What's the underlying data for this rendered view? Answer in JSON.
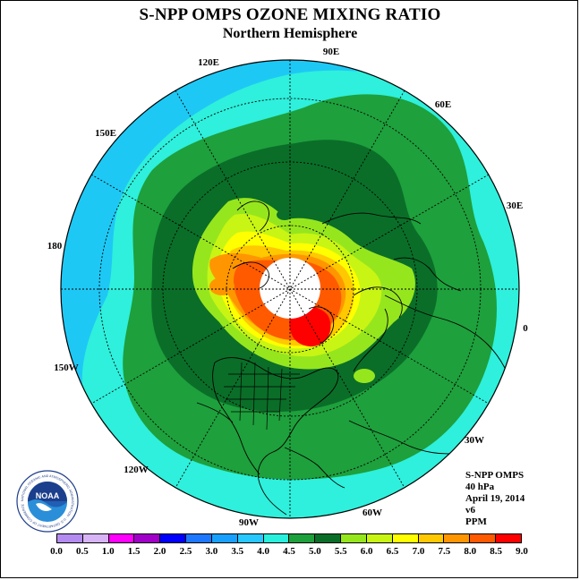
{
  "title": "S-NPP OMPS OZONE MIXING RATIO",
  "subtitle": "Northern Hemisphere",
  "longitude_labels": [
    "90E",
    "60E",
    "30E",
    "0",
    "30W",
    "60W",
    "90W",
    "120W",
    "150W",
    "180",
    "150E",
    "120E"
  ],
  "info": {
    "instrument": "S-NPP OMPS",
    "pressure": "40 hPa",
    "date": "April 19, 2014",
    "version": "v6",
    "unit": "PPM"
  },
  "logo": {
    "name": "noaa-logo",
    "text": "NOAA",
    "ring_text": "NATIONAL OCEANIC AND ATMOSPHERIC ADMINISTRATION · U.S. DEPARTMENT OF COMMERCE"
  },
  "colorbar": {
    "ticks": [
      "0.0",
      "0.5",
      "1.0",
      "1.5",
      "2.0",
      "2.5",
      "3.0",
      "3.5",
      "4.0",
      "4.5",
      "5.0",
      "5.5",
      "6.0",
      "6.5",
      "7.0",
      "7.5",
      "8.0",
      "8.5",
      "9.0"
    ],
    "colors": [
      "#b48cf0",
      "#d7b4f5",
      "#ff00ff",
      "#a000c8",
      "#0000ff",
      "#1e78ff",
      "#19a0ff",
      "#28c8ff",
      "#28f0dc",
      "#1ea03c",
      "#0a6e28",
      "#96e61e",
      "#c8f514",
      "#ffff00",
      "#ffc800",
      "#ff9600",
      "#ff5a00",
      "#ff0000",
      "#8b4513"
    ]
  },
  "map_colors": {
    "outer": "#1ec8f5",
    "cyan": "#2ef0dc",
    "green_light": "#1ea03c",
    "green_dark": "#0a6e28",
    "lime": "#96e61e",
    "yellow_green": "#c8f514",
    "yellow": "#ffff00",
    "orange_light": "#ffc800",
    "orange": "#ff9600",
    "orange_dark": "#ff5a00",
    "red": "#ff0000",
    "pole_gap": "#ffffff"
  }
}
